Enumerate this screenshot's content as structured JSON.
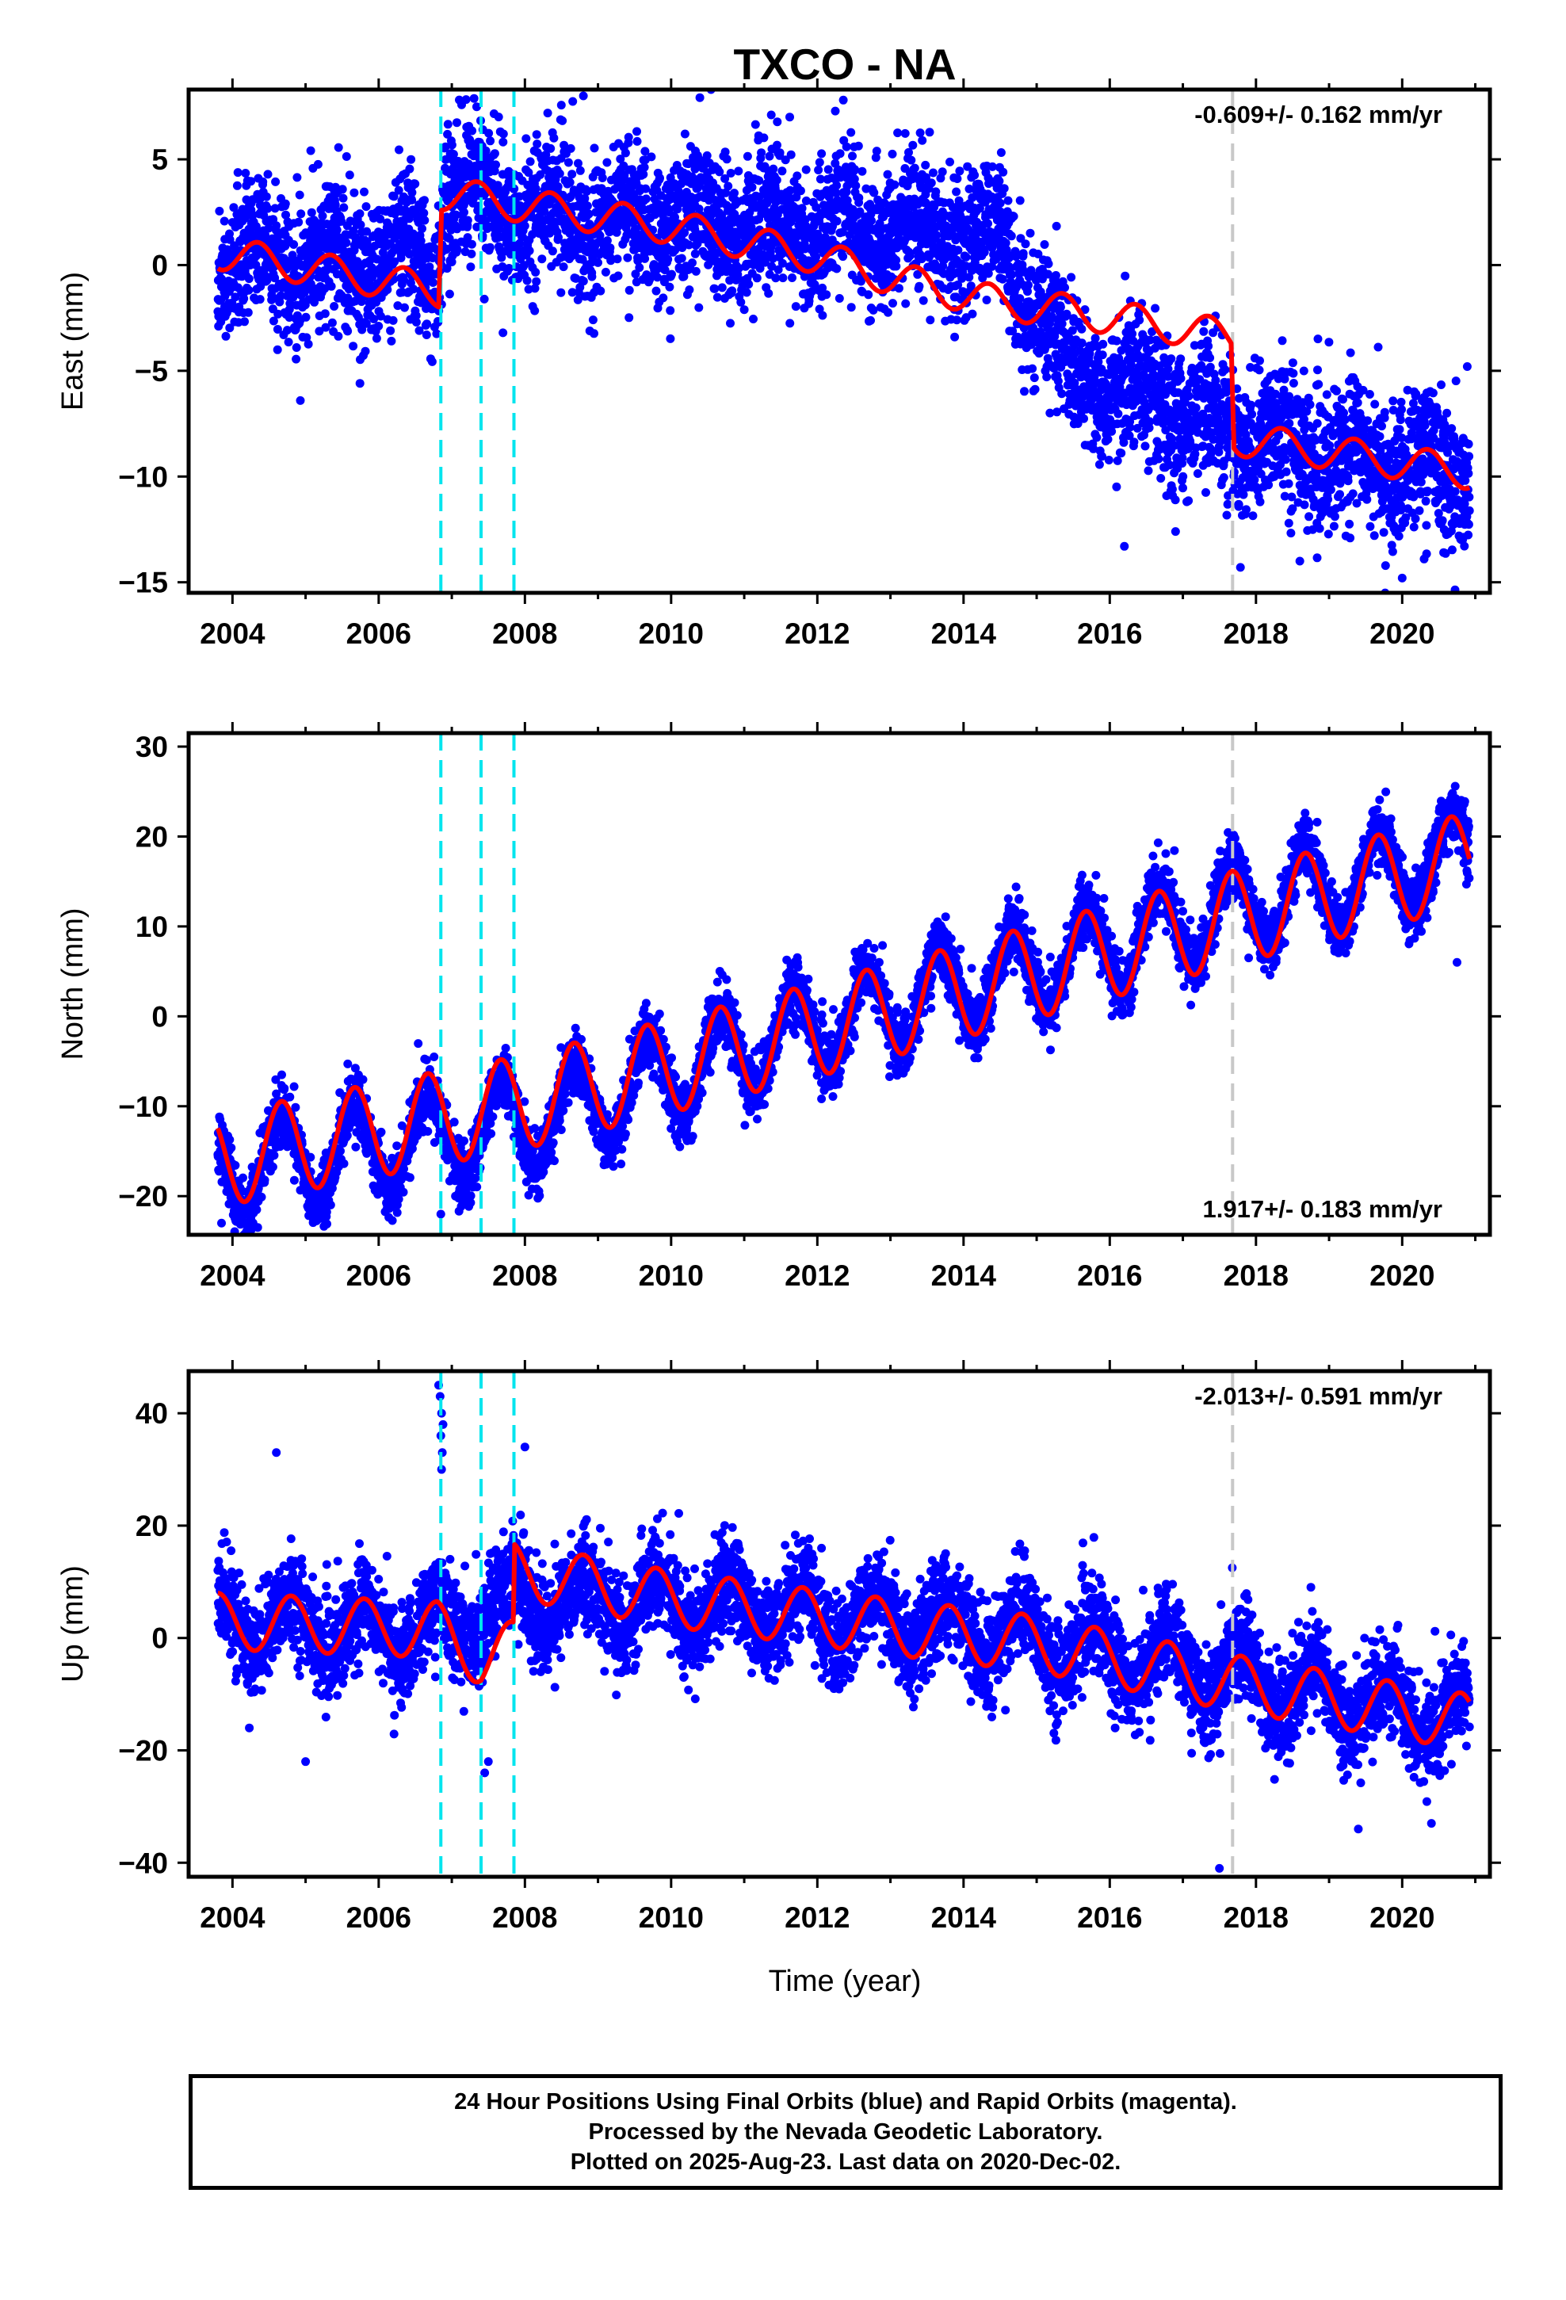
{
  "title": "TXCO - NA",
  "xlabel": "Time (year)",
  "colors": {
    "points": "#0000ff",
    "model": "#ff0000",
    "offset_lines": "#00e5ee",
    "gray_line": "#c8c8c8",
    "frame": "#000000"
  },
  "footer": {
    "line1": "24 Hour Positions Using Final Orbits (blue) and Rapid Orbits (magenta).",
    "line2": "Processed by the Nevada Geodetic Laboratory.",
    "line3": "Plotted on 2025-Aug-23. Last data on 2020-Dec-02."
  },
  "chart_data": [
    {
      "type": "scatter",
      "component": "East",
      "ylabel": "East (mm)",
      "xlabel": "",
      "xlim": [
        2003.4,
        2021.2
      ],
      "ylim": [
        -15.5,
        8.3
      ],
      "xticks": [
        2004,
        2006,
        2008,
        2010,
        2012,
        2014,
        2016,
        2018,
        2020
      ],
      "yticks": [
        -15,
        -10,
        -5,
        0,
        5
      ],
      "rate_label": "-0.609+/- 0.162 mm/yr",
      "rate_position": "top-right",
      "offset_epochs": [
        2006.85,
        2007.4,
        2007.85
      ],
      "gray_epoch": 2017.68,
      "data_span": [
        2003.8,
        2020.92
      ],
      "noise_sd": 1.6,
      "trend_knots": {
        "x": [
          2003.8,
          2006.8,
          2006.9,
          2008.0,
          2010.0,
          2012.0,
          2013.0,
          2014.5,
          2015.5,
          2017.0,
          2017.65,
          2017.7,
          2020.92
        ],
        "y": [
          0.4,
          0.0,
          3.6,
          2.5,
          2.0,
          1.8,
          1.8,
          1.0,
          -5.0,
          -7.0,
          -7.8,
          -8.0,
          -10.0
        ]
      },
      "model_knots": {
        "x": [
          2003.8,
          2006.82,
          2006.86,
          2008.0,
          2010.0,
          2012.0,
          2013.0,
          2014.5,
          2015.5,
          2017.0,
          2017.66,
          2017.7,
          2020.92
        ],
        "y": [
          0.6,
          -1.2,
          3.4,
          2.8,
          1.8,
          0.4,
          -0.6,
          -1.8,
          -2.2,
          -3.0,
          -3.4,
          -8.2,
          -9.8
        ]
      },
      "model_seasonal": {
        "amp": 0.8,
        "phase": 0.1
      },
      "data_seasonal": {
        "amp": 0.9,
        "phase": 0.1
      },
      "outliers": [
        [
          2004.7,
          -3.3
        ],
        [
          2007.7,
          -3.2
        ],
        [
          2008.8,
          8.0
        ],
        [
          2016.2,
          -13.3
        ],
        [
          2018.6,
          -14.0
        ],
        [
          2020.0,
          -14.8
        ],
        [
          2020.3,
          -13.9
        ],
        [
          2016.9,
          -12.6
        ]
      ]
    },
    {
      "type": "scatter",
      "component": "North",
      "ylabel": "North (mm)",
      "xlabel": "",
      "xlim": [
        2003.4,
        2021.2
      ],
      "ylim": [
        -24.3,
        31.5
      ],
      "xticks": [
        2004,
        2006,
        2008,
        2010,
        2012,
        2014,
        2016,
        2018,
        2020
      ],
      "yticks": [
        -20,
        -10,
        0,
        10,
        20,
        30
      ],
      "rate_label": "1.917+/- 0.183 mm/yr",
      "rate_position": "bottom-right",
      "offset_epochs": [
        2006.85,
        2007.4,
        2007.85
      ],
      "gray_epoch": 2017.68,
      "data_span": [
        2003.8,
        2020.92
      ],
      "noise_sd": 1.7,
      "trend_knots": {
        "x": [
          2003.8,
          2008.0,
          2012.0,
          2015.0,
          2017.7,
          2020.92
        ],
        "y": [
          -17.0,
          -12.0,
          -1.0,
          5.5,
          12.0,
          18.0
        ]
      },
      "model_knots": {
        "x": [
          2003.8,
          2008.0,
          2012.0,
          2015.0,
          2017.7,
          2020.92
        ],
        "y": [
          -16.0,
          -9.5,
          -1.5,
          5.0,
          11.0,
          17.5
        ]
      },
      "model_seasonal": {
        "amp": 5.2,
        "phase": 0.42
      },
      "data_seasonal": {
        "amp": 5.0,
        "phase": 0.42
      },
      "outliers": [
        [
          2003.85,
          -23.0
        ],
        [
          2006.85,
          -22.0
        ],
        [
          2020.75,
          6.0
        ],
        [
          2017.9,
          6.5
        ]
      ]
    },
    {
      "type": "scatter",
      "component": "Up",
      "ylabel": "Up (mm)",
      "xlabel": "Time (year)",
      "xlim": [
        2003.4,
        2021.2
      ],
      "ylim": [
        -42.5,
        47.5
      ],
      "xticks": [
        2004,
        2006,
        2008,
        2010,
        2012,
        2014,
        2016,
        2018,
        2020
      ],
      "yticks": [
        -40,
        -20,
        0,
        20,
        40
      ],
      "rate_label": "-2.013+/- 0.591 mm/yr",
      "rate_position": "top-right",
      "offset_epochs": [
        2006.85,
        2007.4,
        2007.85
      ],
      "gray_epoch": 2017.68,
      "data_span": [
        2003.8,
        2020.92
      ],
      "noise_sd": 4.2,
      "trend_knots": {
        "x": [
          2003.8,
          2006.8,
          2007.9,
          2010.0,
          2013.0,
          2015.0,
          2017.7,
          2020.92
        ],
        "y": [
          3.0,
          1.0,
          7.0,
          6.0,
          3.0,
          0.0,
          -7.0,
          -15.0
        ]
      },
      "model_knots": {
        "x": [
          2003.8,
          2006.8,
          2007.4,
          2007.84,
          2007.86,
          2010.0,
          2013.0,
          2015.0,
          2017.7,
          2020.92
        ],
        "y": [
          3.0,
          1.5,
          -3.5,
          -2.0,
          12.0,
          7.0,
          2.0,
          -1.0,
          -8.0,
          -15.0
        ]
      },
      "model_seasonal": {
        "amp": 5.0,
        "phase": 0.55
      },
      "data_seasonal": {
        "amp": 5.0,
        "phase": 0.55
      },
      "outliers": [
        [
          2004.6,
          33.0
        ],
        [
          2006.82,
          45.0
        ],
        [
          2006.84,
          43.0
        ],
        [
          2006.86,
          40.0
        ],
        [
          2006.88,
          38.0
        ],
        [
          2006.85,
          36.0
        ],
        [
          2006.87,
          33.0
        ],
        [
          2006.86,
          30.0
        ],
        [
          2008.0,
          34.0
        ],
        [
          2007.5,
          -22.0
        ],
        [
          2007.45,
          -24.0
        ],
        [
          2005.0,
          -22.0
        ],
        [
          2017.5,
          -41.0
        ],
        [
          2019.4,
          -34.0
        ],
        [
          2020.4,
          -33.0
        ]
      ]
    }
  ]
}
